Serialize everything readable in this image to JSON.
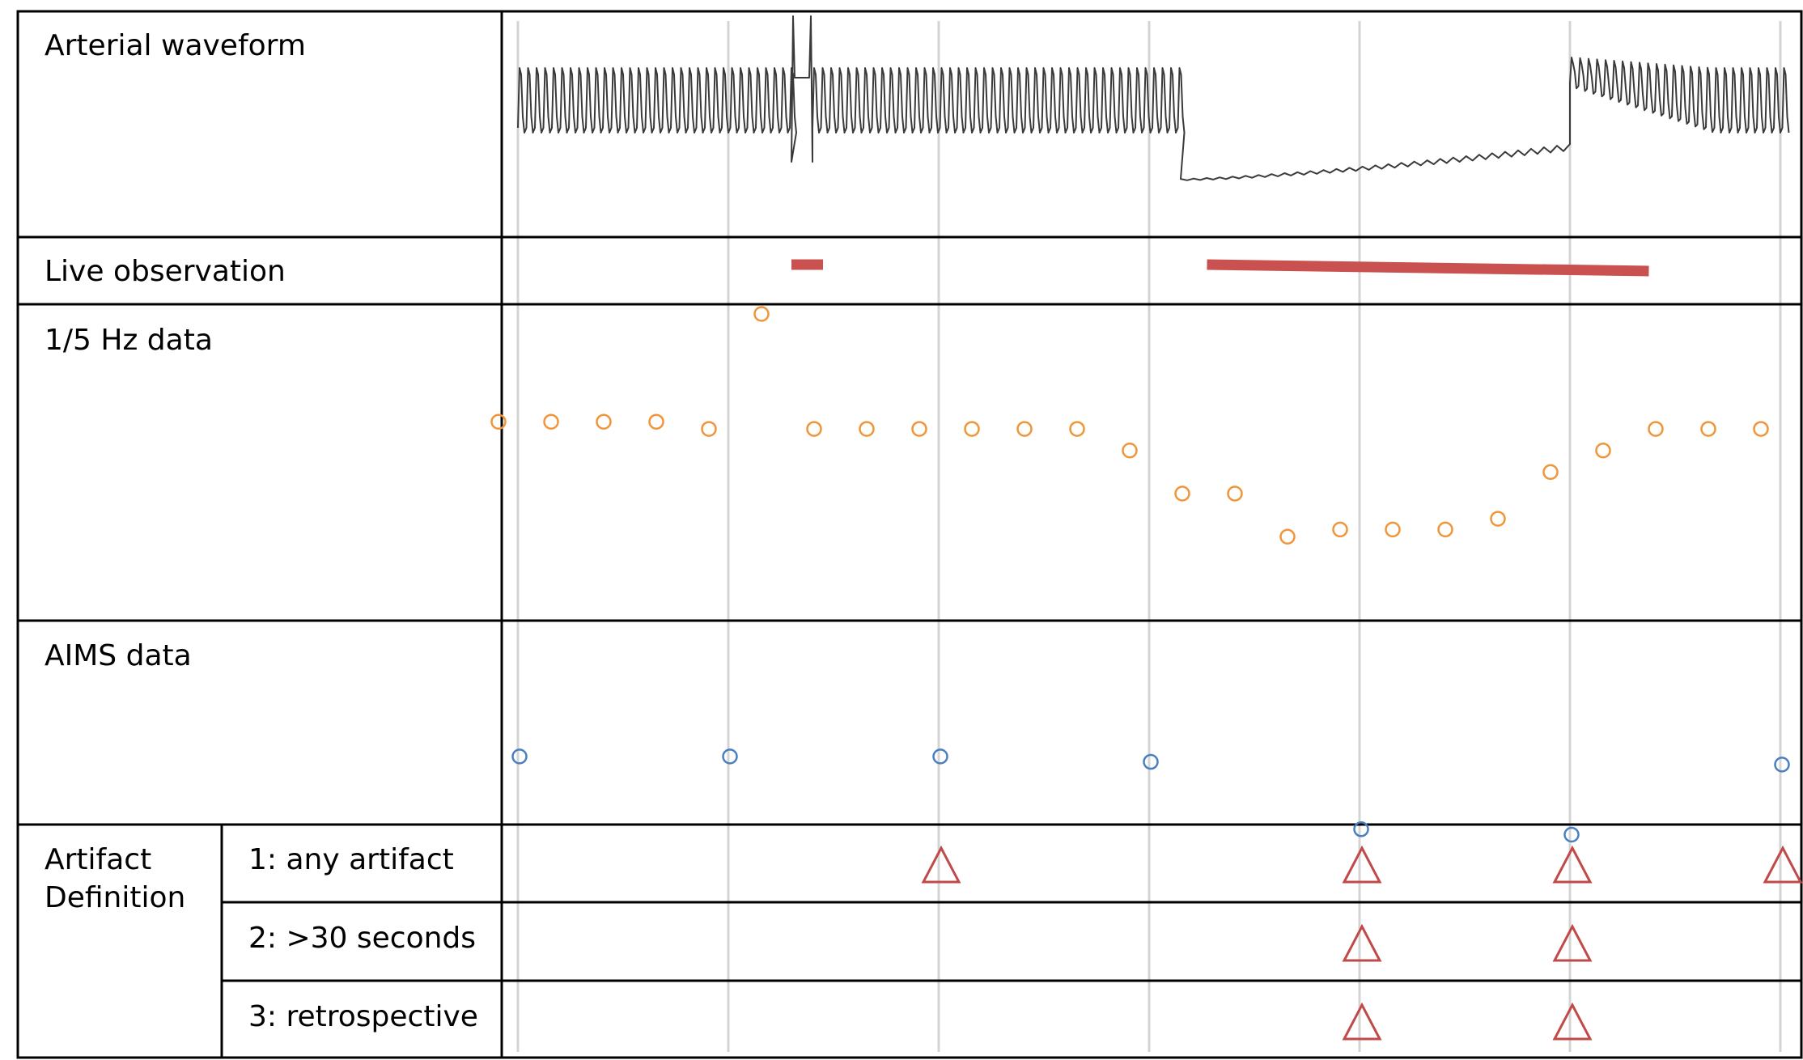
{
  "rows": {
    "arterial": "Arterial waveform",
    "live": "Live observation",
    "hz": "1/5 Hz data",
    "aims": "AIMS data",
    "artifact": {
      "line1": "Artifact",
      "line2": "Definition"
    },
    "def1": "1: any artifact",
    "def2": "2: >30 seconds",
    "def3": "3: retrospective"
  },
  "chart_data": {
    "type": "timeline",
    "time_units": "minutes",
    "gridline_times": [
      0,
      4,
      8,
      12,
      16,
      20,
      24
    ],
    "waveform": {
      "segments": [
        {
          "start": 0,
          "end": 5.2,
          "state": "pulsatile"
        },
        {
          "start": 5.2,
          "end": 5.6,
          "state": "flush spike"
        },
        {
          "start": 5.6,
          "end": 12.6,
          "state": "pulsatile"
        },
        {
          "start": 12.6,
          "end": 20,
          "state": "damped"
        },
        {
          "start": 20,
          "end": 24.2,
          "state": "recovering pulsatile"
        }
      ]
    },
    "live_observation": [
      {
        "start": 5.2,
        "end": 5.8
      },
      {
        "start": 13.1,
        "end": 21.5
      }
    ],
    "hz_data": {
      "x": [
        0,
        1,
        2,
        3,
        4,
        5,
        6,
        7,
        8,
        9,
        10,
        11,
        12,
        13,
        14,
        15,
        16,
        17,
        18,
        19,
        20,
        21,
        22,
        23,
        24
      ],
      "y": [
        70,
        70,
        70,
        70,
        68,
        100,
        68,
        68,
        68,
        68,
        68,
        68,
        62,
        50,
        50,
        38,
        40,
        40,
        40,
        43,
        56,
        62,
        68,
        68,
        68
      ],
      "color": "#f0953a"
    },
    "aims_data": {
      "x": [
        0,
        4,
        8,
        12,
        16,
        20,
        24
      ],
      "y": [
        70,
        70,
        70,
        68,
        43,
        41,
        67
      ],
      "color": "#4a7fc0"
    },
    "artifact_flags": {
      "def1": [
        8,
        16,
        20,
        24
      ],
      "def2": [
        16,
        20
      ],
      "def3": [
        16,
        20
      ],
      "color": "#c04a48"
    },
    "colors": {
      "live_bar": "#c9514f",
      "gridline": "#d4d4d4",
      "waveform": "#3a3a3a"
    }
  }
}
